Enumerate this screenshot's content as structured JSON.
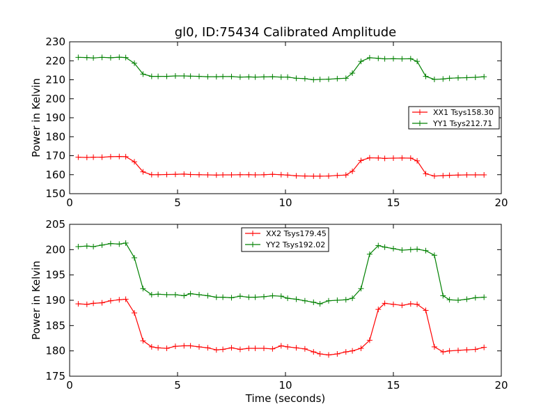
{
  "chart_data": [
    {
      "type": "line",
      "title": "gl0, ID:75434 Calibrated Amplitude",
      "xlabel": "",
      "ylabel": "Power in Kelvin",
      "xlim": [
        0,
        20
      ],
      "ylim": [
        150,
        230
      ],
      "xticks": [
        0,
        5,
        10,
        15,
        20
      ],
      "yticks": [
        150,
        160,
        170,
        180,
        190,
        200,
        210,
        220,
        230
      ],
      "grid": false,
      "legend_position": "center-right",
      "marker": "plus",
      "x": [
        0.4,
        0.8,
        1.1,
        1.5,
        1.9,
        2.3,
        2.6,
        3.0,
        3.4,
        3.8,
        4.1,
        4.5,
        4.9,
        5.3,
        5.6,
        6.0,
        6.4,
        6.8,
        7.1,
        7.5,
        7.9,
        8.3,
        8.6,
        9.0,
        9.4,
        9.8,
        10.1,
        10.5,
        10.9,
        11.3,
        11.6,
        12.0,
        12.4,
        12.8,
        13.1,
        13.5,
        13.9,
        14.3,
        14.6,
        15.0,
        15.4,
        15.8,
        16.1,
        16.5,
        16.9,
        17.3,
        17.6,
        18.0,
        18.4,
        18.8,
        19.2
      ],
      "series": [
        {
          "name": "XX1 Tsys158.30",
          "color": "#ff0000",
          "values": [
            169.2,
            169.1,
            169.2,
            169.2,
            169.5,
            169.6,
            169.5,
            166.8,
            161.5,
            160.0,
            160.0,
            160.1,
            160.2,
            160.3,
            160.1,
            160.0,
            159.9,
            159.8,
            159.9,
            159.9,
            160.0,
            160.0,
            159.9,
            160.0,
            160.2,
            160.0,
            159.8,
            159.4,
            159.3,
            159.2,
            159.2,
            159.3,
            159.6,
            159.8,
            161.8,
            167.5,
            168.9,
            168.8,
            168.6,
            168.7,
            168.8,
            168.7,
            167.3,
            160.5,
            159.3,
            159.5,
            159.7,
            159.8,
            159.9,
            159.9,
            159.9
          ]
        },
        {
          "name": "YY1 Tsys212.71",
          "color": "#008000",
          "values": [
            221.8,
            221.7,
            221.5,
            221.8,
            221.6,
            221.9,
            221.7,
            218.7,
            213.0,
            211.8,
            211.8,
            211.8,
            212.0,
            212.0,
            211.9,
            211.8,
            211.6,
            211.6,
            211.7,
            211.7,
            211.4,
            211.5,
            211.4,
            211.5,
            211.6,
            211.4,
            211.4,
            210.8,
            210.6,
            210.0,
            210.2,
            210.3,
            210.6,
            210.8,
            213.5,
            219.7,
            221.6,
            221.3,
            221.0,
            221.1,
            221.0,
            221.1,
            219.7,
            211.8,
            210.2,
            210.4,
            210.8,
            211.0,
            211.1,
            211.3,
            211.6
          ]
        }
      ]
    },
    {
      "type": "line",
      "title": "",
      "xlabel": "Time (seconds)",
      "ylabel": "Power in Kelvin",
      "xlim": [
        0,
        20
      ],
      "ylim": [
        175,
        205
      ],
      "xticks": [
        0,
        5,
        10,
        15,
        20
      ],
      "yticks": [
        175,
        180,
        185,
        190,
        195,
        200,
        205
      ],
      "grid": false,
      "legend_position": "top-center",
      "marker": "plus",
      "x": [
        0.4,
        0.8,
        1.1,
        1.5,
        1.9,
        2.3,
        2.6,
        3.0,
        3.4,
        3.8,
        4.1,
        4.5,
        4.9,
        5.3,
        5.6,
        6.0,
        6.4,
        6.8,
        7.1,
        7.5,
        7.9,
        8.3,
        8.6,
        9.0,
        9.4,
        9.8,
        10.1,
        10.5,
        10.9,
        11.3,
        11.6,
        12.0,
        12.4,
        12.8,
        13.1,
        13.5,
        13.9,
        14.3,
        14.6,
        15.0,
        15.4,
        15.8,
        16.1,
        16.5,
        16.9,
        17.3,
        17.6,
        18.0,
        18.4,
        18.8,
        19.2
      ],
      "series": [
        {
          "name": "XX2 Tsys179.45",
          "color": "#ff0000",
          "values": [
            189.3,
            189.2,
            189.4,
            189.5,
            189.9,
            190.1,
            190.2,
            187.5,
            182.0,
            180.8,
            180.6,
            180.5,
            180.9,
            181.0,
            181.0,
            180.8,
            180.6,
            180.2,
            180.3,
            180.6,
            180.3,
            180.5,
            180.5,
            180.5,
            180.4,
            181.0,
            180.8,
            180.6,
            180.4,
            179.8,
            179.4,
            179.2,
            179.4,
            179.8,
            180.0,
            180.5,
            182.1,
            188.2,
            189.4,
            189.2,
            189.0,
            189.3,
            189.2,
            188.0,
            180.8,
            179.8,
            180.0,
            180.1,
            180.2,
            180.3,
            180.7
          ]
        },
        {
          "name": "YY2 Tsys192.02",
          "color": "#008000",
          "values": [
            200.6,
            200.7,
            200.6,
            200.9,
            201.2,
            201.1,
            201.3,
            198.4,
            192.3,
            191.1,
            191.2,
            191.1,
            191.1,
            190.9,
            191.3,
            191.1,
            190.9,
            190.6,
            190.6,
            190.5,
            190.8,
            190.6,
            190.6,
            190.7,
            190.9,
            190.8,
            190.4,
            190.2,
            189.9,
            189.6,
            189.3,
            189.9,
            190.0,
            190.1,
            190.4,
            192.3,
            199.1,
            200.8,
            200.5,
            200.2,
            199.9,
            200.0,
            200.1,
            199.8,
            198.9,
            190.9,
            190.1,
            190.0,
            190.2,
            190.5,
            190.6
          ]
        }
      ]
    }
  ]
}
